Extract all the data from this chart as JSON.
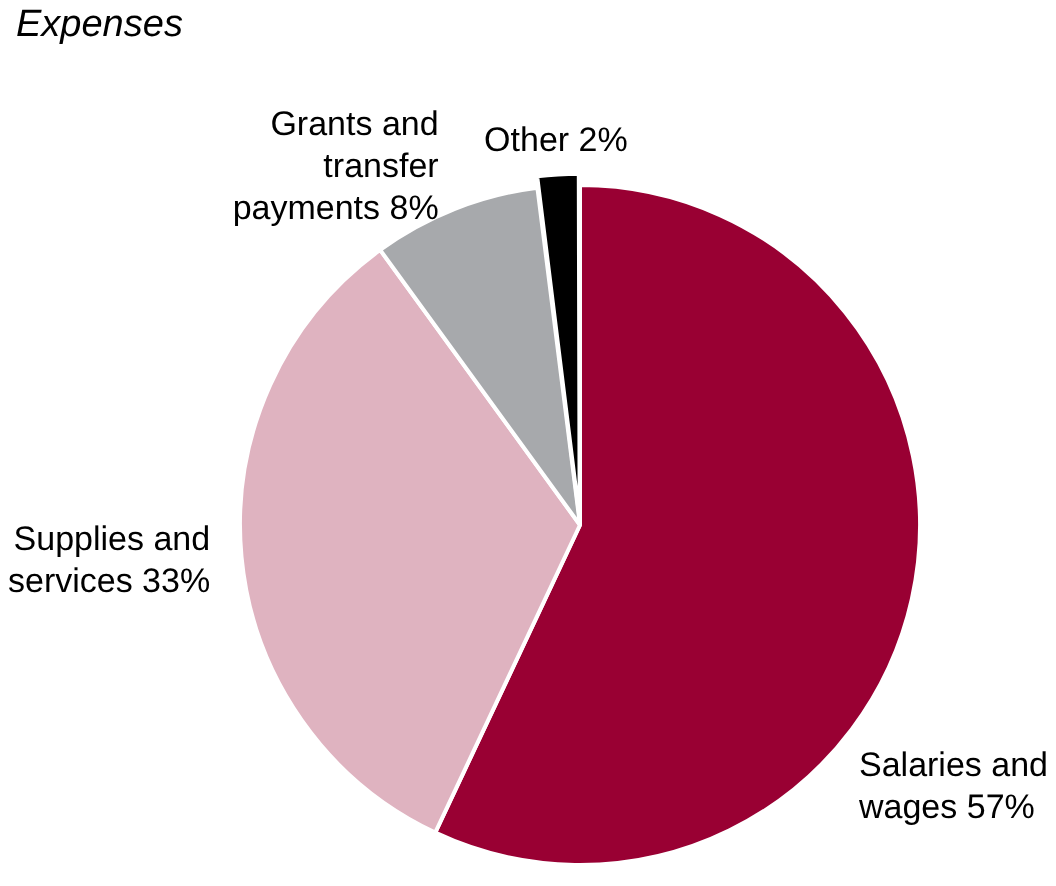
{
  "chart_data": {
    "type": "pie",
    "title": "Expenses",
    "categories": [
      "Salaries and wages",
      "Supplies and services",
      "Grants and transfer payments",
      "Other"
    ],
    "values": [
      57,
      33,
      8,
      2
    ],
    "value_labels": [
      "57%",
      "33%",
      "8%",
      "2%"
    ],
    "colors": [
      "#990033",
      "#dfb3c0",
      "#a7a9ac",
      "#000000"
    ],
    "legend": false
  }
}
